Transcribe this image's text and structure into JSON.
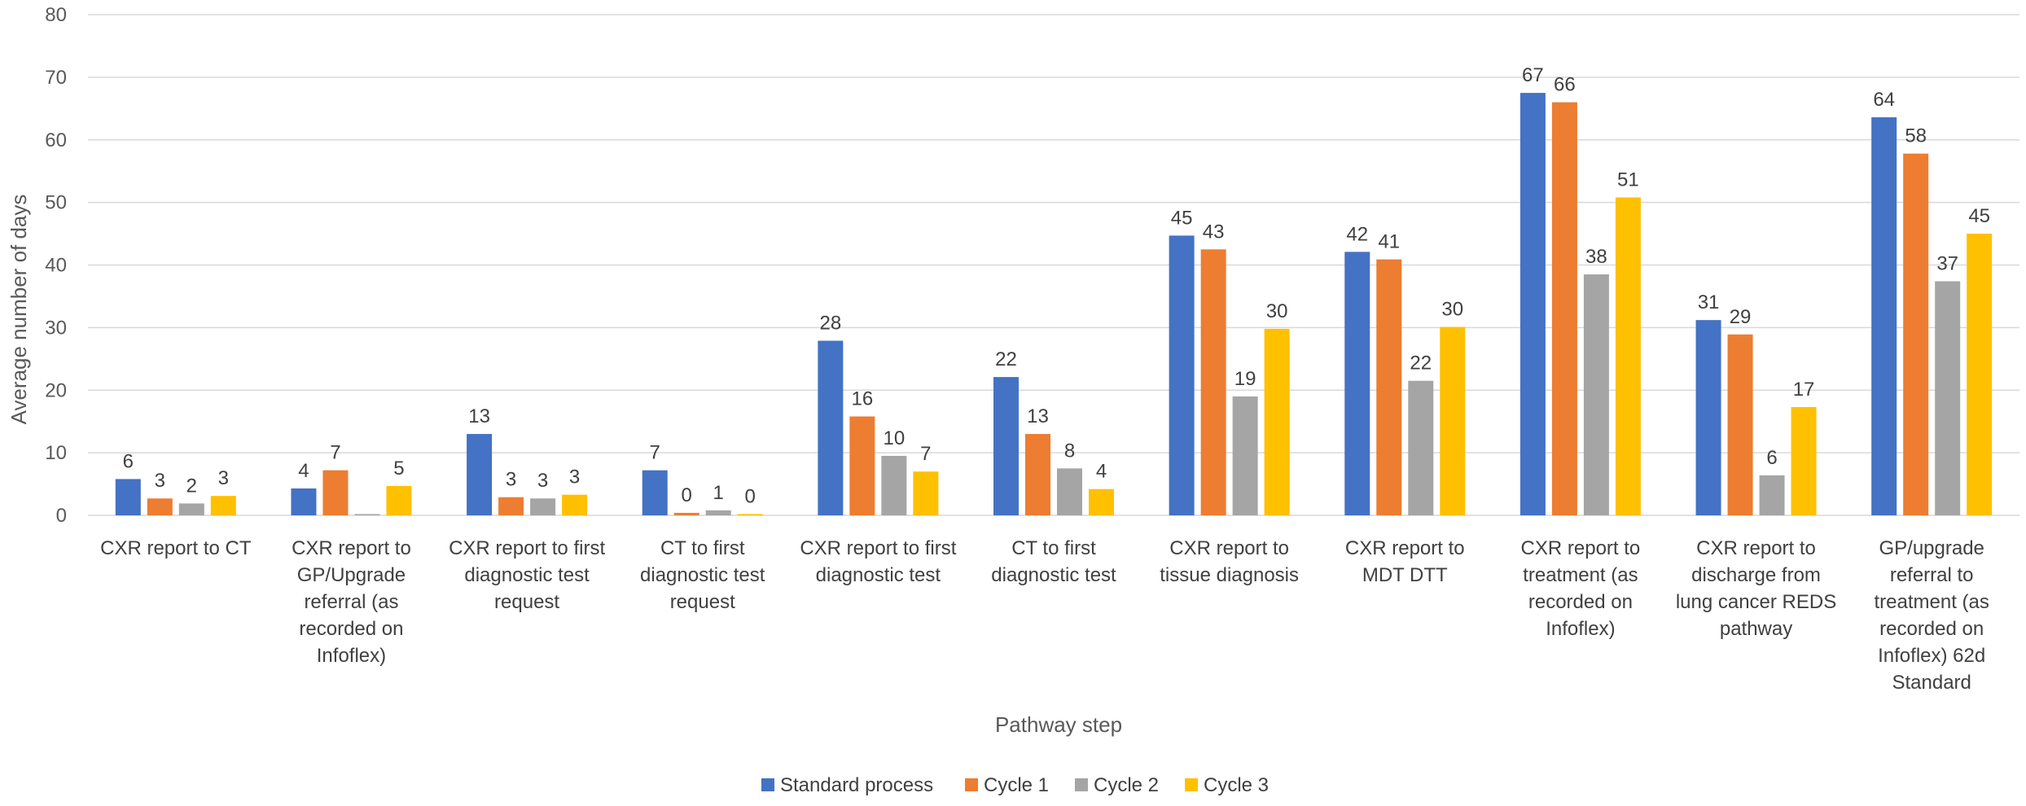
{
  "chart_data": {
    "type": "bar",
    "title": "",
    "xlabel": "Pathway step",
    "ylabel": "Average number of days",
    "ylim": [
      0,
      80
    ],
    "ytick_step": 10,
    "grid": true,
    "legend_position": "bottom",
    "categories": [
      [
        "CXR report to CT"
      ],
      [
        "CXR report to",
        "GP/Upgrade",
        "referral (as",
        "recorded on",
        "Infoflex)"
      ],
      [
        "CXR report to first",
        "diagnostic test",
        "request"
      ],
      [
        "CT to first",
        "diagnostic test",
        "request"
      ],
      [
        "CXR report to first",
        "diagnostic test"
      ],
      [
        "CT to first",
        "diagnostic test"
      ],
      [
        "CXR report to",
        "tissue diagnosis"
      ],
      [
        "CXR report to",
        "MDT DTT"
      ],
      [
        "CXR report to",
        "treatment (as",
        "recorded on",
        "Infoflex)"
      ],
      [
        "CXR report to",
        "discharge from",
        "lung cancer REDS",
        "pathway"
      ],
      [
        "GP/upgrade",
        "referral to",
        "treatment (as",
        "recorded on",
        "Infoflex) 62d",
        "Standard"
      ]
    ],
    "series": [
      {
        "name": "Standard process",
        "color": "#4472C4",
        "values": [
          5.8,
          4.3,
          13.0,
          7.2,
          27.9,
          22.1,
          44.7,
          42.1,
          67.5,
          31.2,
          63.6
        ],
        "labels": [
          "6",
          "4",
          "13",
          "7",
          "28",
          "22",
          "45",
          "42",
          "67",
          "31",
          "64"
        ]
      },
      {
        "name": "Cycle 1",
        "color": "#ED7D31",
        "values": [
          2.7,
          7.2,
          2.9,
          0.4,
          15.8,
          13.0,
          42.5,
          40.9,
          66.0,
          28.9,
          57.8
        ],
        "labels": [
          "3",
          "7",
          "3",
          "0",
          "16",
          "13",
          "43",
          "41",
          "66",
          "29",
          "58"
        ]
      },
      {
        "name": "Cycle 2",
        "color": "#A5A5A5",
        "values": [
          1.9,
          0.2,
          2.7,
          0.8,
          9.5,
          7.5,
          19.0,
          21.5,
          38.5,
          6.4,
          37.4
        ],
        "labels": [
          "2",
          "",
          "3",
          "1",
          "10",
          "8",
          "19",
          "22",
          "38",
          "6",
          "37"
        ]
      },
      {
        "name": "Cycle 3",
        "color": "#FFC000",
        "values": [
          3.1,
          4.7,
          3.3,
          0.2,
          7.0,
          4.2,
          29.8,
          30.1,
          50.8,
          17.3,
          45.0
        ],
        "labels": [
          "3",
          "5",
          "3",
          "0",
          "7",
          "4",
          "30",
          "30",
          "51",
          "17",
          "45"
        ]
      }
    ]
  }
}
